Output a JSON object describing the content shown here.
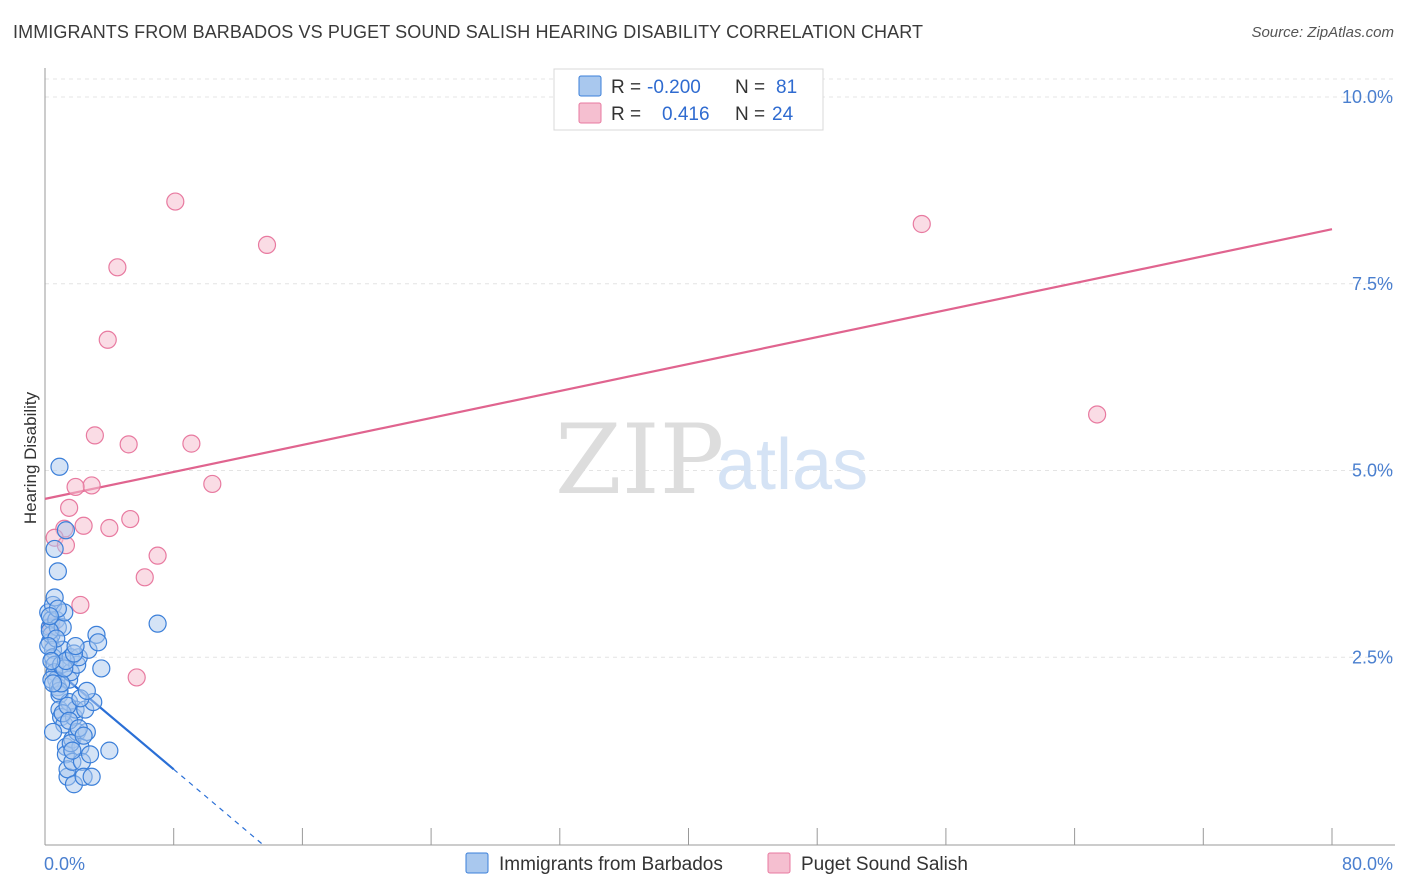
{
  "title": "IMMIGRANTS FROM BARBADOS VS PUGET SOUND SALISH HEARING DISABILITY CORRELATION CHART",
  "source": "Source: ZipAtlas.com",
  "watermark": {
    "zip": "ZIP",
    "atlas": "atlas"
  },
  "colors": {
    "blue_fill": "#a9c8ee",
    "blue_stroke": "#3b7fd9",
    "blue_line": "#2a6fd6",
    "pink_fill": "#f5bfd0",
    "pink_stroke": "#e87aa0",
    "pink_line": "#e0648f",
    "tick_text": "#4a7fcf",
    "grid": "#e4e4e4"
  },
  "legend": {
    "rows": [
      {
        "r_label": "R =",
        "r_value": "-0.200",
        "n_label": "N =",
        "n_value": "81"
      },
      {
        "r_label": "R =",
        "r_value": "0.416",
        "n_label": "N =",
        "n_value": "24"
      }
    ]
  },
  "chart_data": {
    "type": "scatter",
    "title": "IMMIGRANTS FROM BARBADOS VS PUGET SOUND SALISH HEARING DISABILITY CORRELATION CHART",
    "xlabel": "",
    "ylabel": "Hearing Disability",
    "xlim": [
      0,
      80
    ],
    "ylim": [
      0,
      10.5
    ],
    "x_tick_labels": [
      "0.0%",
      "80.0%"
    ],
    "y_ticks": [
      2.5,
      5.0,
      7.5,
      10.0
    ],
    "y_tick_labels": [
      "2.5%",
      "5.0%",
      "7.5%",
      "10.0%"
    ],
    "grid": true,
    "legend_position": "top-center",
    "series": [
      {
        "name": "Immigrants from Barbados",
        "r": -0.2,
        "n": 81,
        "trend": {
          "x": [
            0,
            8.0
          ],
          "y": [
            2.45,
            1.0
          ],
          "dashed_to": [
            13.5,
            0.0
          ]
        },
        "points": [
          [
            0.2,
            3.1
          ],
          [
            0.3,
            2.9
          ],
          [
            0.3,
            2.7
          ],
          [
            0.4,
            3.0
          ],
          [
            0.4,
            2.8
          ],
          [
            0.5,
            2.6
          ],
          [
            0.5,
            2.5
          ],
          [
            0.6,
            2.4
          ],
          [
            0.6,
            2.3
          ],
          [
            0.7,
            2.2
          ],
          [
            0.5,
            3.2
          ],
          [
            0.6,
            3.3
          ],
          [
            0.7,
            3.0
          ],
          [
            0.8,
            2.9
          ],
          [
            0.8,
            2.1
          ],
          [
            0.9,
            2.0
          ],
          [
            0.9,
            1.8
          ],
          [
            1.0,
            1.7
          ],
          [
            1.0,
            2.4
          ],
          [
            1.1,
            2.6
          ],
          [
            1.1,
            2.9
          ],
          [
            1.2,
            3.1
          ],
          [
            1.2,
            1.6
          ],
          [
            1.3,
            1.3
          ],
          [
            1.3,
            1.2
          ],
          [
            1.4,
            0.9
          ],
          [
            1.4,
            1.0
          ],
          [
            1.5,
            1.9
          ],
          [
            1.5,
            2.2
          ],
          [
            1.6,
            2.3
          ],
          [
            1.6,
            2.5
          ],
          [
            1.7,
            1.4
          ],
          [
            1.7,
            1.1
          ],
          [
            1.8,
            0.8
          ],
          [
            1.8,
            1.7
          ],
          [
            1.9,
            1.8
          ],
          [
            2.0,
            1.5
          ],
          [
            2.0,
            2.4
          ],
          [
            2.1,
            2.5
          ],
          [
            2.2,
            1.3
          ],
          [
            2.3,
            1.1
          ],
          [
            2.4,
            0.9
          ],
          [
            2.5,
            1.8
          ],
          [
            2.6,
            1.5
          ],
          [
            2.7,
            2.6
          ],
          [
            2.8,
            1.2
          ],
          [
            2.9,
            0.9
          ],
          [
            3.0,
            1.9
          ],
          [
            3.2,
            2.8
          ],
          [
            3.3,
            2.7
          ],
          [
            3.5,
            2.35
          ],
          [
            4.0,
            1.25
          ],
          [
            0.6,
            3.95
          ],
          [
            0.8,
            3.65
          ],
          [
            0.9,
            5.05
          ],
          [
            1.3,
            4.2
          ],
          [
            7.0,
            2.95
          ],
          [
            0.3,
            2.85
          ],
          [
            0.4,
            2.2
          ],
          [
            0.5,
            1.5
          ],
          [
            0.7,
            2.75
          ],
          [
            0.8,
            3.15
          ],
          [
            0.9,
            2.05
          ],
          [
            1.0,
            2.15
          ],
          [
            1.1,
            1.75
          ],
          [
            1.2,
            2.35
          ],
          [
            1.3,
            2.45
          ],
          [
            1.4,
            1.85
          ],
          [
            1.5,
            1.65
          ],
          [
            1.6,
            1.35
          ],
          [
            1.7,
            1.25
          ],
          [
            1.8,
            2.55
          ],
          [
            1.9,
            2.65
          ],
          [
            2.1,
            1.55
          ],
          [
            2.2,
            1.95
          ],
          [
            2.4,
            1.45
          ],
          [
            2.6,
            2.05
          ],
          [
            0.2,
            2.65
          ],
          [
            0.3,
            3.05
          ],
          [
            0.4,
            2.45
          ],
          [
            0.5,
            2.15
          ]
        ]
      },
      {
        "name": "Puget Sound Salish",
        "r": 0.416,
        "n": 24,
        "trend": {
          "x": [
            0,
            80
          ],
          "y": [
            4.62,
            8.23
          ]
        },
        "points": [
          [
            8.1,
            8.6
          ],
          [
            13.8,
            8.02
          ],
          [
            4.5,
            7.72
          ],
          [
            3.9,
            6.75
          ],
          [
            3.1,
            5.47
          ],
          [
            5.2,
            5.35
          ],
          [
            9.1,
            5.36
          ],
          [
            2.9,
            4.8
          ],
          [
            10.4,
            4.82
          ],
          [
            1.5,
            4.5
          ],
          [
            1.9,
            4.78
          ],
          [
            5.3,
            4.35
          ],
          [
            2.4,
            4.26
          ],
          [
            4.0,
            4.23
          ],
          [
            1.2,
            4.22
          ],
          [
            0.6,
            4.1
          ],
          [
            1.3,
            4.0
          ],
          [
            7.0,
            3.86
          ],
          [
            6.2,
            3.57
          ],
          [
            2.2,
            3.2
          ],
          [
            0.4,
            2.92
          ],
          [
            5.7,
            2.23
          ],
          [
            54.5,
            8.3
          ],
          [
            65.4,
            5.75
          ]
        ]
      }
    ]
  },
  "bottom_legend": {
    "items": [
      "Immigrants from Barbados",
      "Puget Sound Salish"
    ]
  }
}
